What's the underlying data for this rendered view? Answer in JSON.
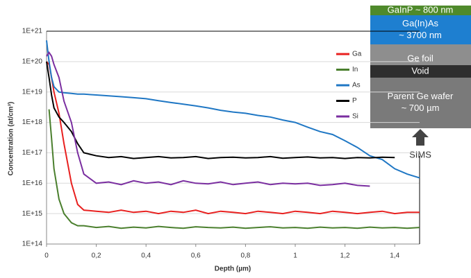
{
  "chart_data": {
    "type": "line",
    "x_label": "Depth (µm)",
    "y_label": "Concentration (at/cm³)",
    "yscale": "log",
    "grid": true,
    "x": [
      0,
      0.01,
      0.02,
      0.03,
      0.05,
      0.07,
      0.1,
      0.125,
      0.15,
      0.2,
      0.25,
      0.3,
      0.35,
      0.4,
      0.45,
      0.5,
      0.55,
      0.6,
      0.65,
      0.7,
      0.75,
      0.8,
      0.85,
      0.9,
      0.95,
      1.0,
      1.05,
      1.1,
      1.15,
      1.2,
      1.25,
      1.3,
      1.35,
      1.4,
      1.45,
      1.5
    ],
    "series": [
      {
        "name": "Ga",
        "color": "#e8201f",
        "values": [
          1e+20,
          8e+19,
          3e+19,
          1e+19,
          2e+18,
          2e+17,
          1e+16,
          2000000000000000.0,
          1300000000000000.0,
          1200000000000000.0,
          1100000000000000.0,
          1300000000000000.0,
          1100000000000000.0,
          1200000000000000.0,
          1000000000000000.0,
          1200000000000000.0,
          1100000000000000.0,
          1300000000000000.0,
          1000000000000000.0,
          1200000000000000.0,
          1100000000000000.0,
          1000000000000000.0,
          1200000000000000.0,
          1100000000000000.0,
          1000000000000000.0,
          1200000000000000.0,
          1100000000000000.0,
          1000000000000000.0,
          1200000000000000.0,
          1100000000000000.0,
          1000000000000000.0,
          1100000000000000.0,
          1200000000000000.0,
          1000000000000000.0,
          1100000000000000.0,
          1100000000000000.0
        ]
      },
      {
        "name": "In",
        "color": "#4a7f2d",
        "values": [
          null,
          2.7e+18,
          3e+17,
          3e+16,
          3000000000000000.0,
          1000000000000000.0,
          500000000000000.0,
          400000000000000.0,
          400000000000000.0,
          350000000000000.0,
          380000000000000.0,
          330000000000000.0,
          360000000000000.0,
          340000000000000.0,
          380000000000000.0,
          350000000000000.0,
          330000000000000.0,
          370000000000000.0,
          350000000000000.0,
          340000000000000.0,
          360000000000000.0,
          330000000000000.0,
          350000000000000.0,
          370000000000000.0,
          340000000000000.0,
          350000000000000.0,
          330000000000000.0,
          360000000000000.0,
          340000000000000.0,
          350000000000000.0,
          330000000000000.0,
          360000000000000.0,
          340000000000000.0,
          350000000000000.0,
          330000000000000.0,
          350000000000000.0
        ]
      },
      {
        "name": "As",
        "color": "#1f77c4",
        "values": [
          5e+20,
          1e+20,
          3e+19,
          1.5e+19,
          1e+19,
          9.5e+18,
          9e+18,
          8.5e+18,
          8.5e+18,
          8e+18,
          7.5e+18,
          7e+18,
          6.5e+18,
          6e+18,
          5.2e+18,
          4.5e+18,
          4e+18,
          3.5e+18,
          3e+18,
          2.5e+18,
          2.2e+18,
          2e+18,
          1.7e+18,
          1.5e+18,
          1.2e+18,
          1e+18,
          7e+17,
          5e+17,
          4e+17,
          2.5e+17,
          1.5e+17,
          8e+16,
          6e+16,
          3e+16,
          2e+16,
          1.5e+16
        ]
      },
      {
        "name": "P",
        "color": "#000000",
        "values": [
          1e+20,
          3e+19,
          8e+18,
          3e+18,
          1.5e+18,
          1e+18,
          5e+17,
          2e+17,
          1e+17,
          8e+16,
          7e+16,
          7.5e+16,
          6.5e+16,
          7e+16,
          7.5e+16,
          6.8e+16,
          7e+16,
          7.5e+16,
          6.5e+16,
          7e+16,
          7.2e+16,
          6.8e+16,
          7e+16,
          7.5e+16,
          6.6e+16,
          7e+16,
          7.3e+16,
          6.8e+16,
          7e+16,
          6.5e+16,
          7e+16,
          6.8e+16,
          7.2e+16,
          7e+16,
          null,
          null
        ]
      },
      {
        "name": "Si",
        "color": "#7a2ea0",
        "values": [
          1.5e+20,
          2e+20,
          1.5e+20,
          8e+19,
          3e+19,
          5e+18,
          1e+18,
          1e+17,
          2e+16,
          1e+16,
          1.1e+16,
          9000000000000000.0,
          1.2e+16,
          1e+16,
          1.1e+16,
          9000000000000000.0,
          1.2e+16,
          1e+16,
          9500000000000000.0,
          1.1e+16,
          9000000000000000.0,
          1e+16,
          1.1e+16,
          9000000000000000.0,
          1e+16,
          9500000000000000.0,
          1e+16,
          8500000000000000.0,
          9000000000000000.0,
          1e+16,
          8500000000000000.0,
          8000000000000000.0,
          null,
          null,
          null,
          null
        ]
      }
    ],
    "xlim": [
      0,
      1.5
    ],
    "ylim": [
      100000000000000.0,
      1e+21
    ],
    "xticks": [
      0,
      {
        "value": 0.2,
        "label": "0,2"
      },
      {
        "value": 0.4,
        "label": "0,4"
      },
      {
        "value": 0.6,
        "label": "0,6"
      },
      {
        "value": 0.8,
        "label": "0,8"
      },
      1,
      {
        "value": 1.2,
        "label": "1,2"
      },
      {
        "value": 1.4,
        "label": "1,4"
      }
    ],
    "yticks": [
      {
        "value": 100000000000000.0,
        "label": "1E+14"
      },
      {
        "value": 1000000000000000.0,
        "label": "1E+15"
      },
      {
        "value": 1e+16,
        "label": "1E+16"
      },
      {
        "value": 1e+17,
        "label": "1E+17"
      },
      {
        "value": 1e+18,
        "label": "1E+18"
      },
      {
        "value": 1e+19,
        "label": "1E+19"
      },
      {
        "value": 1e+20,
        "label": "1E+20"
      },
      {
        "value": 1e+21,
        "label": "1E+21"
      }
    ]
  },
  "inset": {
    "layers": [
      {
        "lines": [
          "GaInP ~ 800 nm"
        ]
      },
      {
        "lines": [
          "Ga(In)As",
          "~ 3700 nm"
        ]
      },
      {
        "lines": [
          "Ge foil"
        ]
      },
      {
        "lines": [
          "Void"
        ]
      },
      {
        "lines": [
          "Parent Ge wafer",
          "~ 700 µm"
        ]
      }
    ],
    "probe": "SIMS"
  }
}
